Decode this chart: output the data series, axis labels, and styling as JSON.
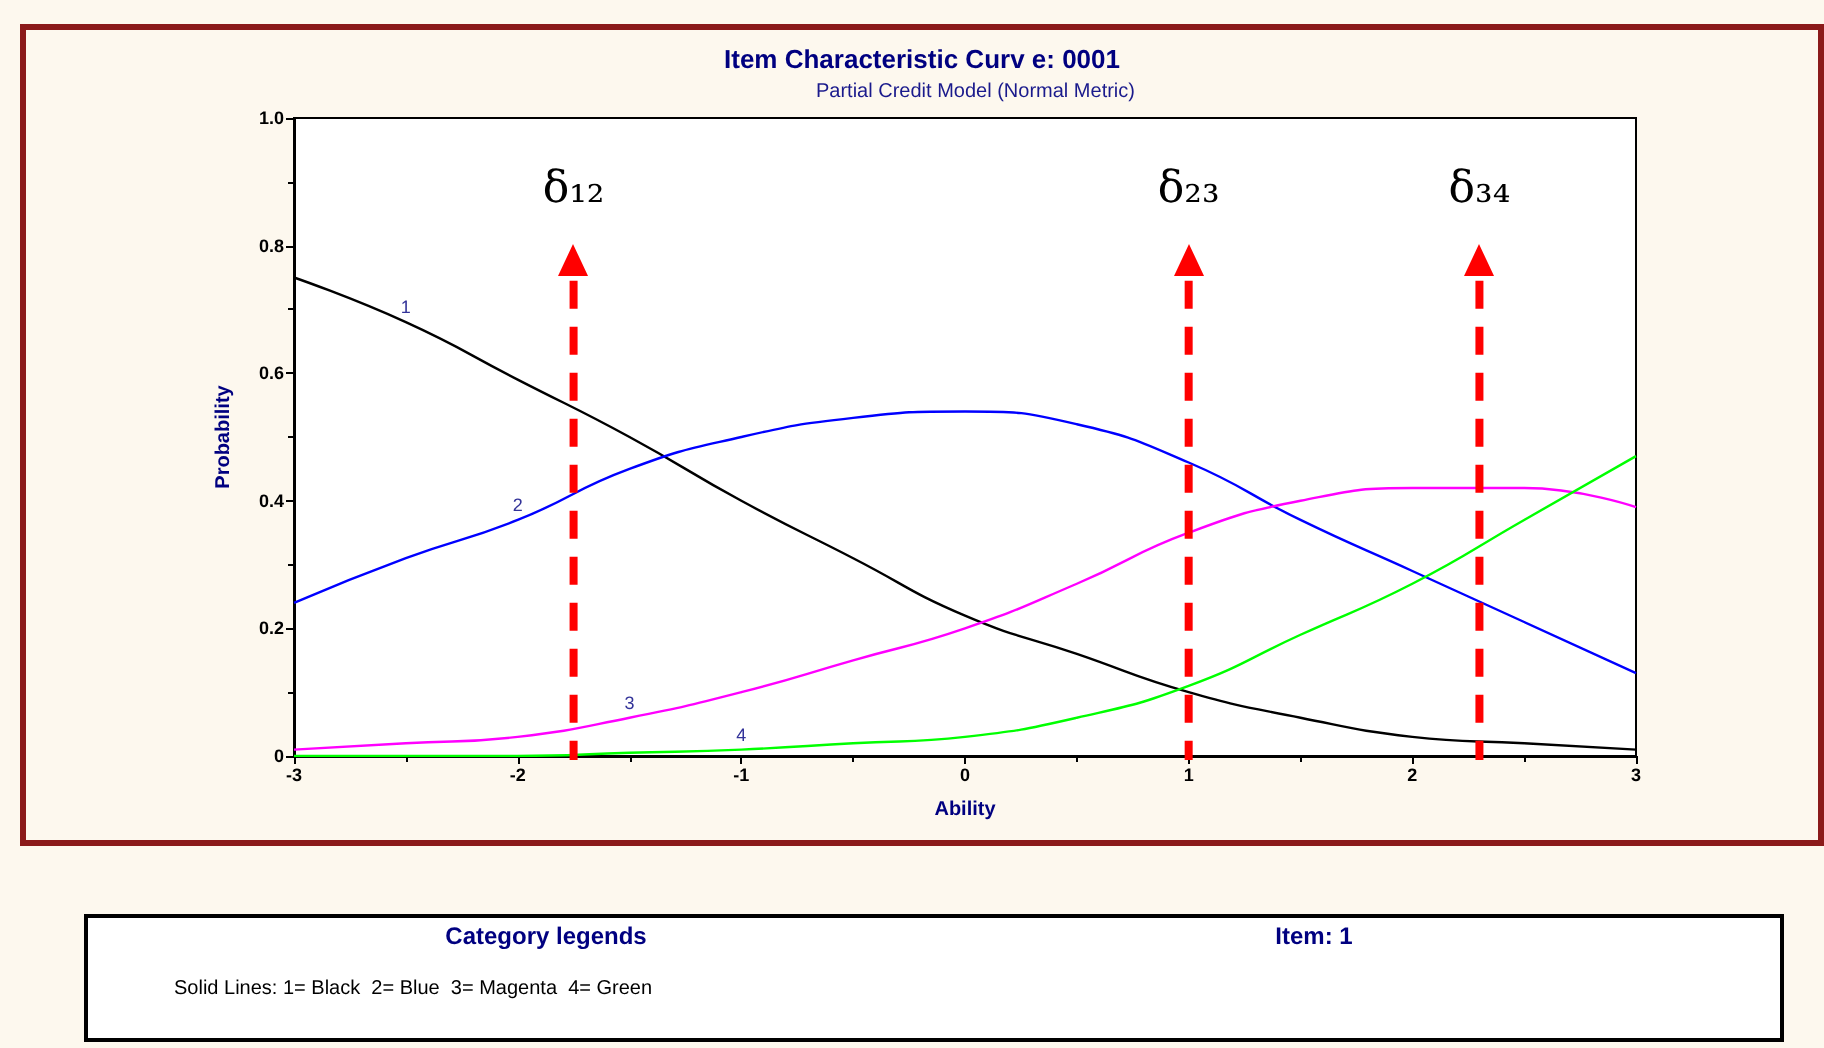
{
  "chart_data": {
    "type": "line",
    "title": "Item Characteristic Curv e: 0001",
    "subtitle": "Partial Credit Model (Normal Metric)",
    "xlabel": "Ability",
    "ylabel": "Probability",
    "x": [
      -3,
      -2.5,
      -2,
      -1.5,
      -1,
      -0.5,
      0,
      0.5,
      1,
      1.5,
      2,
      2.5,
      3
    ],
    "series": [
      {
        "name": "1",
        "color": "#000000",
        "values": [
          0.75,
          0.68,
          0.59,
          0.5,
          0.4,
          0.31,
          0.22,
          0.16,
          0.1,
          0.06,
          0.03,
          0.02,
          0.01
        ]
      },
      {
        "name": "2",
        "color": "#0000ff",
        "values": [
          0.24,
          0.31,
          0.37,
          0.45,
          0.5,
          0.53,
          0.54,
          0.52,
          0.46,
          0.37,
          0.29,
          0.21,
          0.13
        ]
      },
      {
        "name": "3",
        "color": "#ff00ff",
        "values": [
          0.01,
          0.02,
          0.03,
          0.06,
          0.1,
          0.15,
          0.2,
          0.27,
          0.35,
          0.4,
          0.42,
          0.42,
          0.39
        ]
      },
      {
        "name": "4",
        "color": "#00ff00",
        "values": [
          0,
          0,
          0,
          0.005,
          0.01,
          0.02,
          0.03,
          0.06,
          0.11,
          0.19,
          0.27,
          0.37,
          0.47
        ]
      }
    ],
    "xlim": [
      -3,
      3
    ],
    "xticks": [
      -3,
      -2,
      -1,
      0,
      1,
      2,
      3
    ],
    "ylim": [
      0,
      1
    ],
    "yticks": [
      0,
      0.2,
      0.4,
      0.6,
      0.8,
      {
        "value": 1,
        "label": "1.0"
      }
    ],
    "ref_lines": [
      {
        "axis": "x",
        "value": -1.75,
        "label": "δ₁₂",
        "color": "#ff0000",
        "line_style": "dashed"
      },
      {
        "axis": "x",
        "value": 1,
        "label": "δ₂₃",
        "color": "#ff0000",
        "line_style": "dashed"
      },
      {
        "axis": "x",
        "value": 2.3,
        "label": "δ₃₄",
        "color": "#ff0000",
        "line_style": "dashed"
      }
    ],
    "annotations": [
      "Category legends",
      "Item: 1",
      "Solid Lines: 1= Black  2= Blue  3= Magenta  4= Green"
    ],
    "grid": false,
    "marker": "none",
    "line_style": "solid"
  }
}
